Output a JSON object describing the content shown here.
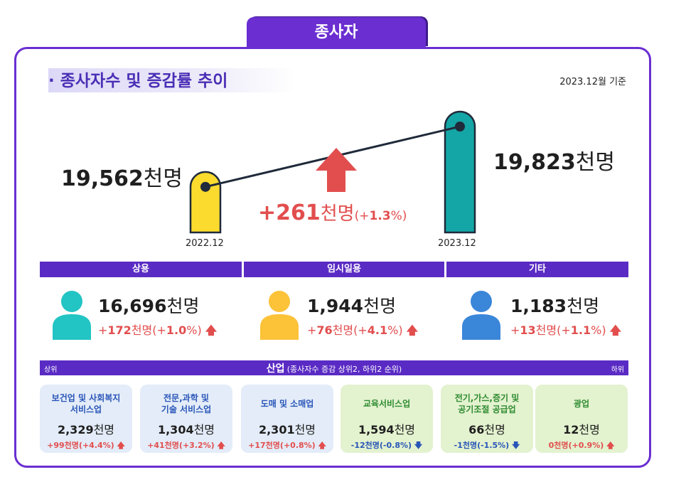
{
  "tab_title": "종사자",
  "section_title": "· 종사자수 및 증감률 추이",
  "reference_date": "2023.12월 기준",
  "chart_data": {
    "type": "bar",
    "categories": [
      "2022.12",
      "2023.12"
    ],
    "values": [
      19562,
      19823
    ],
    "value_labels": [
      "19,562",
      "19,823"
    ],
    "unit": "천명",
    "bar_colors": [
      "#fadb2e",
      "#14a6a6"
    ],
    "change": {
      "value": "+261",
      "unit": "천명",
      "pct_open": "(+",
      "pct_value": "1.3",
      "pct_close": "%)",
      "color": "#e24e4e"
    }
  },
  "employment_types": [
    {
      "label": "상용",
      "value": "16,696",
      "unit": "천명",
      "change_prefix": "+",
      "change_value": "172",
      "change_unit": "천명(+",
      "change_pct": "1.0",
      "change_close": "%)",
      "icon": "person-icon",
      "color": "#22c4c4"
    },
    {
      "label": "임시일용",
      "value": "1,944",
      "unit": "천명",
      "change_prefix": "+",
      "change_value": "76",
      "change_unit": "천명(+",
      "change_pct": "4.1",
      "change_close": "%)",
      "icon": "person-icon",
      "color": "#fcc238"
    },
    {
      "label": "기타",
      "value": "1,183",
      "unit": "천명",
      "change_prefix": "+",
      "change_value": "13",
      "change_unit": "천명(+",
      "change_pct": "1.1",
      "change_close": "%)",
      "icon": "person-icon",
      "color": "#3a86d9"
    }
  ],
  "industry_header": {
    "left": "상위",
    "title": "산업",
    "subtitle": "(종사자수 증감 상위2, 하위2 순위)",
    "right": "하위"
  },
  "industries": [
    {
      "name": "보건업 및 사회복지\n서비스업",
      "value": "2,329",
      "unit": "천명",
      "change": "+99천명(+4.4%)",
      "direction": "up",
      "theme": "blue"
    },
    {
      "name": "전문,과학 및\n기술 서비스업",
      "value": "1,304",
      "unit": "천명",
      "change": "+41천명(+3.2%)",
      "direction": "up",
      "theme": "blue"
    },
    {
      "name": "도매 및 소매업",
      "value": "2,301",
      "unit": "천명",
      "change": "+17천명(+0.8%)",
      "direction": "up",
      "theme": "blue"
    },
    {
      "name": "교육서비스업",
      "value": "1,594",
      "unit": "천명",
      "change": "-12천명(-0.8%)",
      "direction": "down",
      "theme": "green"
    },
    {
      "name": "전기,가스,증기 및\n공기조절 공급업",
      "value": "66",
      "unit": "천명",
      "change": "-1천명(-1.5%)",
      "direction": "down",
      "theme": "green"
    },
    {
      "name": "광업",
      "value": "12",
      "unit": "천명",
      "change": "0천명(+0.9%)",
      "direction": "up",
      "theme": "green"
    }
  ]
}
